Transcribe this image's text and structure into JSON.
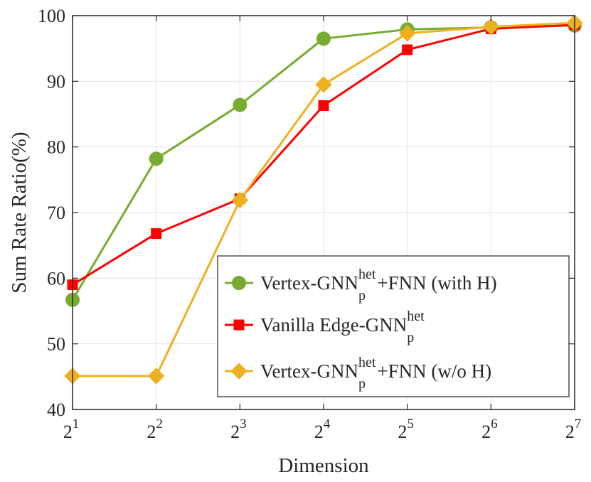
{
  "chart_data": {
    "type": "line",
    "x": [
      1,
      2,
      3,
      4,
      5,
      6,
      7
    ],
    "x_tick_labels": [
      {
        "base": "2",
        "exp": "1"
      },
      {
        "base": "2",
        "exp": "2"
      },
      {
        "base": "2",
        "exp": "3"
      },
      {
        "base": "2",
        "exp": "4"
      },
      {
        "base": "2",
        "exp": "5"
      },
      {
        "base": "2",
        "exp": "6"
      },
      {
        "base": "2",
        "exp": "7"
      }
    ],
    "xlabel": "Dimension",
    "ylabel": "Sum Rate Ratio(%)",
    "ylim": [
      40,
      100
    ],
    "yticks": [
      40,
      50,
      60,
      70,
      80,
      90,
      100
    ],
    "grid": true,
    "legend_position": "bottom-right",
    "series": [
      {
        "name": "Vertex-GNN_p^het+FNN (with H)",
        "legend": {
          "prefix": "Vertex-GNN",
          "sup": "het",
          "sub": "p",
          "suffix": "+FNN (with H)"
        },
        "color": "#77AC30",
        "marker": "circle",
        "values": [
          56.7,
          78.2,
          86.4,
          96.5,
          97.9,
          98.2,
          98.5
        ]
      },
      {
        "name": "Vanilla Edge-GNN_p^het",
        "legend": {
          "prefix": "Vanilla Edge-GNN",
          "sup": "het",
          "sub": "p",
          "suffix": ""
        },
        "color": "#FF0000",
        "marker": "square",
        "values": [
          59.0,
          66.8,
          72.1,
          86.3,
          94.8,
          98.0,
          98.6
        ]
      },
      {
        "name": "Vertex-GNN_p^het+FNN (w/o H)",
        "legend": {
          "prefix": "Vertex-GNN",
          "sup": "het",
          "sub": "p",
          "suffix": "+FNN (w/o H)"
        },
        "color": "#EDB120",
        "marker": "diamond",
        "values": [
          45.1,
          45.1,
          71.9,
          89.5,
          97.3,
          98.3,
          98.9
        ]
      }
    ]
  }
}
